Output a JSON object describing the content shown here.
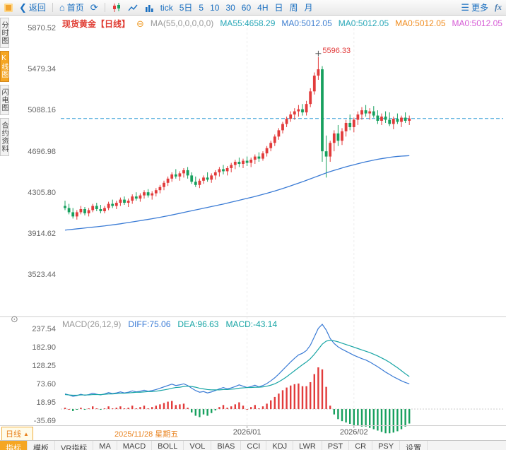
{
  "toolbar": {
    "back": "返回",
    "home": "首页",
    "tick": "tick",
    "periods": [
      "5日",
      "5",
      "10",
      "30",
      "60",
      "4H",
      "日",
      "周",
      "月"
    ],
    "more": "更多",
    "fx": "fx"
  },
  "left_rail": {
    "items": [
      {
        "label": "分时图",
        "selected": false
      },
      {
        "label": "K线图",
        "selected": true
      },
      {
        "label": "闪电图",
        "selected": false
      },
      {
        "label": "合约资料",
        "selected": false
      }
    ]
  },
  "main_legend": {
    "title": "现货黄金【日线】",
    "ma_setting": "MA(55,0,0,0,0,0)",
    "values": [
      {
        "label": "MA55:4658.29",
        "color": "#2aa8b8"
      },
      {
        "label": "MA0:5012.05",
        "color": "#3f7fd0"
      },
      {
        "label": "MA0:5012.05",
        "color": "#2aa8b8"
      },
      {
        "label": "MA0:5012.05",
        "color": "#f08c1e"
      },
      {
        "label": "MA0:5012.05",
        "color": "#d65bd6"
      }
    ]
  },
  "annotation": {
    "peak_label": "5596.33"
  },
  "macd_legend": {
    "title": "MACD(26,12,9)",
    "diff": {
      "label": "DIFF:75.06",
      "color": "#3a7bd5"
    },
    "dea": {
      "label": "DEA:96.63",
      "color": "#18a5a5"
    },
    "macd": {
      "label": "MACD:-43.14",
      "color": "#18a5a5"
    }
  },
  "bottom": {
    "period_label": "日线",
    "period_arrow": "▲",
    "date_label": "2025/11/28 星期五"
  },
  "tabs": [
    "指标",
    "模板",
    "VR指标",
    "MA",
    "MACD",
    "BOLL",
    "VOL",
    "BIAS",
    "CCI",
    "KDJ",
    "LWR",
    "PST",
    "CR",
    "PSY",
    "设置"
  ],
  "colors": {
    "up": "#e23b3b",
    "down": "#17a05e",
    "ma_line": "#3a7bd5",
    "dashed_line": "#2e9bd6",
    "diff_line": "#3a7bd5",
    "dea_line": "#18a5a5",
    "accent_orange": "#f5a623",
    "title_red": "#e03c32"
  },
  "chart_data": [
    {
      "type": "candlestick",
      "title": "现货黄金【日线】",
      "period": "日线",
      "y_ticks": [
        5870.52,
        5479.34,
        5088.16,
        4696.98,
        4305.8,
        3914.62,
        3523.44
      ],
      "current_price": 5012.05,
      "peak_price": 5596.33,
      "ma55_latest": 4658.29,
      "x_axis_labels": [
        {
          "label": "2026/01",
          "index": 46
        },
        {
          "label": "2026/02",
          "index": 73
        }
      ],
      "candles": [
        [
          4180,
          4230,
          4140,
          4160
        ],
        [
          4160,
          4200,
          4100,
          4120
        ],
        [
          4120,
          4160,
          4060,
          4080
        ],
        [
          4080,
          4140,
          4050,
          4120
        ],
        [
          4120,
          4180,
          4100,
          4150
        ],
        [
          4150,
          4170,
          4090,
          4110
        ],
        [
          4110,
          4160,
          4080,
          4140
        ],
        [
          4140,
          4200,
          4120,
          4180
        ],
        [
          4180,
          4210,
          4130,
          4150
        ],
        [
          4150,
          4190,
          4110,
          4130
        ],
        [
          4130,
          4180,
          4110,
          4160
        ],
        [
          4160,
          4220,
          4140,
          4200
        ],
        [
          4200,
          4240,
          4160,
          4180
        ],
        [
          4180,
          4230,
          4150,
          4210
        ],
        [
          4210,
          4260,
          4180,
          4240
        ],
        [
          4240,
          4270,
          4190,
          4210
        ],
        [
          4210,
          4250,
          4170,
          4230
        ],
        [
          4230,
          4290,
          4200,
          4270
        ],
        [
          4270,
          4310,
          4230,
          4250
        ],
        [
          4250,
          4300,
          4220,
          4280
        ],
        [
          4280,
          4330,
          4250,
          4310
        ],
        [
          4310,
          4340,
          4260,
          4280
        ],
        [
          4280,
          4320,
          4240,
          4300
        ],
        [
          4300,
          4350,
          4270,
          4330
        ],
        [
          4330,
          4380,
          4300,
          4360
        ],
        [
          4360,
          4420,
          4330,
          4400
        ],
        [
          4400,
          4460,
          4370,
          4440
        ],
        [
          4440,
          4500,
          4410,
          4480
        ],
        [
          4480,
          4530,
          4440,
          4460
        ],
        [
          4460,
          4510,
          4420,
          4490
        ],
        [
          4490,
          4540,
          4450,
          4520
        ],
        [
          4520,
          4550,
          4440,
          4470
        ],
        [
          4470,
          4500,
          4390,
          4410
        ],
        [
          4410,
          4460,
          4360,
          4380
        ],
        [
          4380,
          4440,
          4350,
          4420
        ],
        [
          4420,
          4470,
          4390,
          4450
        ],
        [
          4450,
          4500,
          4410,
          4430
        ],
        [
          4430,
          4490,
          4400,
          4470
        ],
        [
          4470,
          4520,
          4430,
          4500
        ],
        [
          4500,
          4550,
          4460,
          4530
        ],
        [
          4530,
          4570,
          4480,
          4510
        ],
        [
          4510,
          4560,
          4470,
          4540
        ],
        [
          4540,
          4590,
          4500,
          4570
        ],
        [
          4570,
          4620,
          4530,
          4600
        ],
        [
          4600,
          4640,
          4550,
          4580
        ],
        [
          4580,
          4630,
          4540,
          4610
        ],
        [
          4610,
          4650,
          4560,
          4590
        ],
        [
          4590,
          4640,
          4550,
          4620
        ],
        [
          4620,
          4670,
          4580,
          4650
        ],
        [
          4650,
          4690,
          4600,
          4630
        ],
        [
          4630,
          4700,
          4610,
          4680
        ],
        [
          4680,
          4750,
          4650,
          4730
        ],
        [
          4730,
          4800,
          4700,
          4780
        ],
        [
          4780,
          4860,
          4750,
          4840
        ],
        [
          4840,
          4920,
          4810,
          4900
        ],
        [
          4900,
          4980,
          4870,
          4960
        ],
        [
          4960,
          5030,
          4930,
          5010
        ],
        [
          5010,
          5080,
          4980,
          5050
        ],
        [
          5050,
          5110,
          5000,
          5080
        ],
        [
          5080,
          5140,
          5030,
          5100
        ],
        [
          5100,
          5150,
          5040,
          5070
        ],
        [
          5070,
          5180,
          5040,
          5150
        ],
        [
          5150,
          5300,
          5120,
          5270
        ],
        [
          5270,
          5450,
          5240,
          5420
        ],
        [
          5420,
          5596.33,
          5380,
          5480
        ],
        [
          5480,
          5510,
          4600,
          4700
        ],
        [
          4700,
          4850,
          4450,
          4650
        ],
        [
          4650,
          4800,
          4600,
          4780
        ],
        [
          4780,
          4900,
          4700,
          4870
        ],
        [
          4870,
          4950,
          4750,
          4800
        ],
        [
          4800,
          4920,
          4760,
          4890
        ],
        [
          4890,
          5000,
          4840,
          4970
        ],
        [
          4970,
          5050,
          4900,
          4930
        ],
        [
          4930,
          5020,
          4880,
          5000
        ],
        [
          5000,
          5080,
          4950,
          5050
        ],
        [
          5050,
          5120,
          5000,
          5090
        ],
        [
          5090,
          5140,
          5030,
          5060
        ],
        [
          5060,
          5110,
          5000,
          5080
        ],
        [
          5080,
          5130,
          5020,
          5040
        ],
        [
          5040,
          5090,
          4960,
          4990
        ],
        [
          4990,
          5060,
          4950,
          5030
        ],
        [
          5030,
          5080,
          4970,
          5000
        ],
        [
          5000,
          5070,
          4940,
          4960
        ],
        [
          4960,
          5030,
          4910,
          5010
        ],
        [
          5010,
          5060,
          4960,
          4980
        ],
        [
          4980,
          5040,
          4930,
          5020
        ],
        [
          5020,
          5070,
          4970,
          4990
        ],
        [
          4990,
          5040,
          4950,
          5012.05
        ]
      ],
      "ma55": [
        3950,
        3954,
        3958,
        3962,
        3966,
        3970,
        3974,
        3978,
        3982,
        3986,
        3990,
        3995,
        4000,
        4005,
        4010,
        4016,
        4022,
        4028,
        4034,
        4040,
        4046,
        4052,
        4058,
        4065,
        4072,
        4079,
        4086,
        4094,
        4102,
        4110,
        4118,
        4126,
        4134,
        4142,
        4150,
        4158,
        4166,
        4174,
        4182,
        4190,
        4198,
        4207,
        4216,
        4225,
        4234,
        4243,
        4252,
        4261,
        4270,
        4280,
        4290,
        4300,
        4311,
        4322,
        4334,
        4346,
        4358,
        4371,
        4384,
        4397,
        4410,
        4424,
        4438,
        4452,
        4466,
        4480,
        4494,
        4507,
        4519,
        4530,
        4541,
        4552,
        4562,
        4572,
        4582,
        4591,
        4600,
        4608,
        4616,
        4624,
        4630,
        4636,
        4642,
        4647,
        4651,
        4654,
        4656,
        4658.29
      ]
    },
    {
      "type": "macd",
      "title": "MACD(26,12,9)",
      "y_ticks": [
        237.54,
        182.9,
        128.25,
        73.6,
        18.95,
        -35.69
      ],
      "diff_latest": 75.06,
      "dea_latest": 96.63,
      "macd_latest": -43.14,
      "histogram_rule": "2*(diff-dea)",
      "diff": [
        45,
        42,
        38,
        40,
        44,
        41,
        43,
        47,
        44,
        42,
        45,
        49,
        46,
        48,
        51,
        48,
        50,
        54,
        51,
        53,
        56,
        53,
        55,
        58,
        62,
        66,
        70,
        74,
        70,
        72,
        75,
        70,
        62,
        55,
        50,
        52,
        48,
        51,
        55,
        60,
        64,
        60,
        63,
        67,
        72,
        68,
        64,
        67,
        71,
        66,
        70,
        76,
        84,
        93,
        104,
        116,
        128,
        140,
        151,
        161,
        166,
        174,
        190,
        215,
        240,
        252,
        235,
        210,
        195,
        185,
        178,
        172,
        166,
        160,
        155,
        150,
        146,
        140,
        133,
        126,
        118,
        110,
        103,
        96,
        90,
        84,
        79,
        75.06
      ],
      "dea": [
        43,
        42,
        41,
        41,
        42,
        42,
        42,
        43,
        43,
        43,
        44,
        45,
        45,
        46,
        47,
        47,
        48,
        49,
        50,
        50,
        51,
        52,
        52,
        53,
        55,
        57,
        59,
        62,
        64,
        65,
        67,
        68,
        67,
        65,
        62,
        60,
        58,
        57,
        57,
        57,
        58,
        58,
        59,
        60,
        62,
        63,
        64,
        64,
        65,
        65,
        66,
        68,
        71,
        75,
        81,
        88,
        96,
        105,
        114,
        123,
        132,
        140,
        150,
        163,
        178,
        193,
        202,
        205,
        203,
        200,
        196,
        192,
        188,
        184,
        180,
        176,
        172,
        168,
        163,
        158,
        152,
        146,
        139,
        131,
        123,
        114,
        105,
        96.63
      ]
    }
  ]
}
